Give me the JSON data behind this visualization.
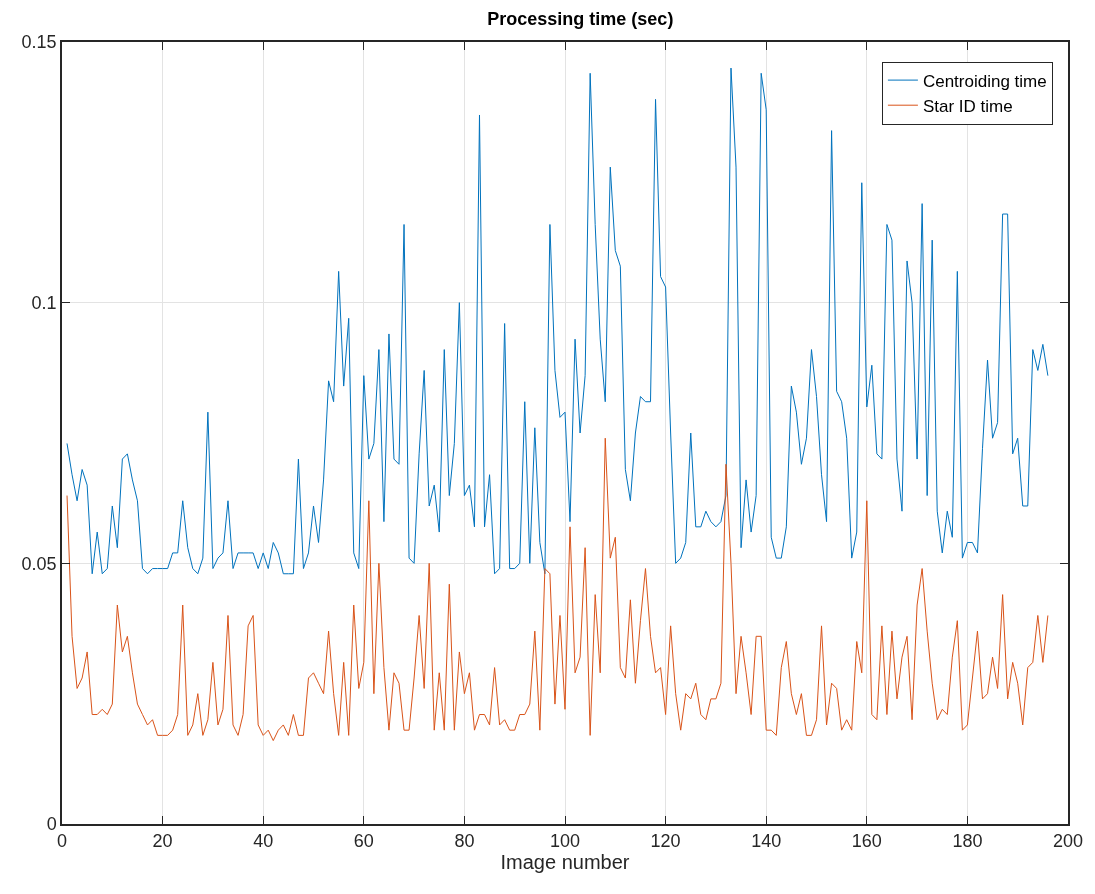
{
  "chart_data": {
    "type": "line",
    "title": "Processing time (sec)",
    "xlabel": "Image number",
    "x": [
      1,
      2,
      3,
      4,
      5,
      6,
      7,
      8,
      9,
      10,
      11,
      12,
      13,
      14,
      15,
      16,
      17,
      18,
      19,
      20,
      21,
      22,
      23,
      24,
      25,
      26,
      27,
      28,
      29,
      30,
      31,
      32,
      33,
      34,
      35,
      36,
      37,
      38,
      39,
      40,
      41,
      42,
      43,
      44,
      45,
      46,
      47,
      48,
      49,
      50,
      51,
      52,
      53,
      54,
      55,
      56,
      57,
      58,
      59,
      60,
      61,
      62,
      63,
      64,
      65,
      66,
      67,
      68,
      69,
      70,
      71,
      72,
      73,
      74,
      75,
      76,
      77,
      78,
      79,
      80,
      81,
      82,
      83,
      84,
      85,
      86,
      87,
      88,
      89,
      90,
      91,
      92,
      93,
      94,
      95,
      96,
      97,
      98,
      99,
      100,
      101,
      102,
      103,
      104,
      105,
      106,
      107,
      108,
      109,
      110,
      111,
      112,
      113,
      114,
      115,
      116,
      117,
      118,
      119,
      120,
      121,
      122,
      123,
      124,
      125,
      126,
      127,
      128,
      129,
      130,
      131,
      132,
      133,
      134,
      135,
      136,
      137,
      138,
      139,
      140,
      141,
      142,
      143,
      144,
      145,
      146,
      147,
      148,
      149,
      150,
      151,
      152,
      153,
      154,
      155,
      156,
      157,
      158,
      159,
      160,
      161,
      162,
      163,
      164,
      165,
      166,
      167,
      168,
      169,
      170,
      171,
      172,
      173,
      174,
      175,
      176,
      177,
      178,
      179,
      180,
      181,
      182,
      183,
      184,
      185,
      186,
      187,
      188,
      189,
      190,
      191,
      192,
      193,
      194,
      195,
      196
    ],
    "series": [
      {
        "name": "Centroiding time",
        "color": "#0072bd",
        "values": [
          0.073,
          0.067,
          0.062,
          0.068,
          0.065,
          0.048,
          0.056,
          0.048,
          0.049,
          0.061,
          0.053,
          0.07,
          0.071,
          0.066,
          0.062,
          0.049,
          0.048,
          0.049,
          0.049,
          0.049,
          0.049,
          0.052,
          0.052,
          0.062,
          0.053,
          0.049,
          0.048,
          0.051,
          0.079,
          0.049,
          0.051,
          0.052,
          0.062,
          0.049,
          0.052,
          0.052,
          0.052,
          0.052,
          0.049,
          0.052,
          0.049,
          0.054,
          0.052,
          0.048,
          0.048,
          0.048,
          0.07,
          0.049,
          0.052,
          0.061,
          0.054,
          0.066,
          0.085,
          0.081,
          0.106,
          0.084,
          0.097,
          0.052,
          0.049,
          0.086,
          0.07,
          0.073,
          0.091,
          0.058,
          0.094,
          0.07,
          0.069,
          0.115,
          0.051,
          0.05,
          0.071,
          0.087,
          0.061,
          0.065,
          0.056,
          0.091,
          0.063,
          0.073,
          0.1,
          0.063,
          0.065,
          0.057,
          0.136,
          0.057,
          0.067,
          0.048,
          0.049,
          0.096,
          0.049,
          0.049,
          0.05,
          0.081,
          0.05,
          0.076,
          0.054,
          0.048,
          0.115,
          0.087,
          0.078,
          0.079,
          0.058,
          0.093,
          0.075,
          0.086,
          0.144,
          0.115,
          0.093,
          0.081,
          0.126,
          0.11,
          0.107,
          0.068,
          0.062,
          0.075,
          0.082,
          0.081,
          0.081,
          0.139,
          0.105,
          0.103,
          0.075,
          0.05,
          0.051,
          0.054,
          0.075,
          0.057,
          0.057,
          0.06,
          0.058,
          0.057,
          0.058,
          0.063,
          0.145,
          0.126,
          0.053,
          0.066,
          0.056,
          0.063,
          0.144,
          0.137,
          0.055,
          0.051,
          0.051,
          0.057,
          0.084,
          0.079,
          0.069,
          0.074,
          0.091,
          0.082,
          0.067,
          0.058,
          0.133,
          0.083,
          0.081,
          0.074,
          0.051,
          0.056,
          0.123,
          0.08,
          0.088,
          0.071,
          0.07,
          0.115,
          0.112,
          0.07,
          0.06,
          0.108,
          0.1,
          0.07,
          0.119,
          0.063,
          0.112,
          0.06,
          0.052,
          0.06,
          0.055,
          0.106,
          0.051,
          0.054,
          0.054,
          0.052,
          0.072,
          0.089,
          0.074,
          0.077,
          0.117,
          0.117,
          0.071,
          0.074,
          0.061,
          0.061,
          0.091,
          0.087,
          0.092,
          0.086
        ]
      },
      {
        "name": "Star ID time",
        "color": "#d95319",
        "values": [
          0.063,
          0.036,
          0.026,
          0.028,
          0.033,
          0.021,
          0.021,
          0.022,
          0.021,
          0.023,
          0.042,
          0.033,
          0.036,
          0.029,
          0.023,
          0.021,
          0.019,
          0.02,
          0.017,
          0.017,
          0.017,
          0.018,
          0.021,
          0.042,
          0.017,
          0.019,
          0.025,
          0.017,
          0.02,
          0.031,
          0.019,
          0.022,
          0.04,
          0.019,
          0.017,
          0.021,
          0.038,
          0.04,
          0.019,
          0.017,
          0.018,
          0.016,
          0.018,
          0.019,
          0.017,
          0.021,
          0.017,
          0.017,
          0.028,
          0.029,
          0.027,
          0.025,
          0.037,
          0.025,
          0.017,
          0.031,
          0.017,
          0.042,
          0.026,
          0.031,
          0.062,
          0.025,
          0.05,
          0.03,
          0.018,
          0.029,
          0.027,
          0.018,
          0.018,
          0.028,
          0.04,
          0.026,
          0.05,
          0.018,
          0.029,
          0.018,
          0.046,
          0.018,
          0.033,
          0.025,
          0.029,
          0.018,
          0.021,
          0.021,
          0.019,
          0.03,
          0.019,
          0.02,
          0.018,
          0.018,
          0.021,
          0.021,
          0.023,
          0.037,
          0.018,
          0.049,
          0.048,
          0.023,
          0.04,
          0.022,
          0.057,
          0.029,
          0.032,
          0.053,
          0.017,
          0.044,
          0.029,
          0.074,
          0.051,
          0.055,
          0.03,
          0.028,
          0.043,
          0.027,
          0.039,
          0.049,
          0.036,
          0.029,
          0.03,
          0.021,
          0.038,
          0.025,
          0.018,
          0.025,
          0.024,
          0.027,
          0.021,
          0.02,
          0.024,
          0.024,
          0.027,
          0.069,
          0.05,
          0.025,
          0.036,
          0.029,
          0.021,
          0.036,
          0.036,
          0.018,
          0.018,
          0.017,
          0.03,
          0.035,
          0.025,
          0.021,
          0.025,
          0.017,
          0.017,
          0.02,
          0.038,
          0.019,
          0.027,
          0.026,
          0.018,
          0.02,
          0.018,
          0.035,
          0.029,
          0.062,
          0.021,
          0.02,
          0.038,
          0.021,
          0.037,
          0.024,
          0.032,
          0.036,
          0.02,
          0.042,
          0.049,
          0.037,
          0.027,
          0.02,
          0.022,
          0.021,
          0.032,
          0.039,
          0.018,
          0.019,
          0.028,
          0.037,
          0.024,
          0.025,
          0.032,
          0.026,
          0.044,
          0.024,
          0.031,
          0.027,
          0.019,
          0.03,
          0.031,
          0.04,
          0.031,
          0.04
        ]
      }
    ],
    "xlim": [
      0,
      200
    ],
    "xticks": [
      0,
      20,
      40,
      60,
      80,
      100,
      120,
      140,
      160,
      180,
      200
    ],
    "ylim": [
      0,
      0.15
    ],
    "yticks": [
      0,
      0.05,
      0.1,
      0.15
    ],
    "grid": true,
    "legend": "top right",
    "marker": "none",
    "line_style": "solid"
  }
}
